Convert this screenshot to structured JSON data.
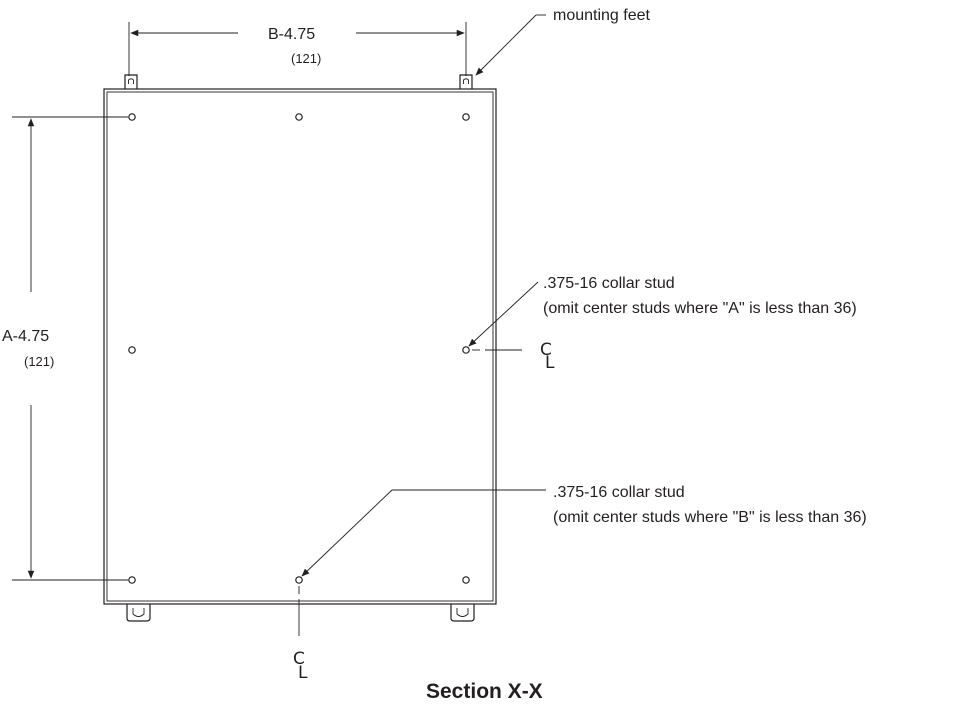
{
  "labels": {
    "width_dim": "B-4.75",
    "width_dim_metric": "(121)",
    "height_dim": "A-4.75",
    "height_dim_metric": "(121)",
    "mounting_feet": "mounting feet",
    "stud_right": ".375-16 collar stud",
    "stud_right_note": "(omit center studs where \"A\" is less than 36)",
    "stud_bottom": ".375-16 collar stud",
    "stud_bottom_note": "(omit center studs where \"B\" is less than 36)",
    "centerline_right": "C",
    "centerline_right_sub": "L",
    "centerline_bottom": "C",
    "centerline_bottom_sub": "L",
    "section_title": "Section X-X"
  }
}
